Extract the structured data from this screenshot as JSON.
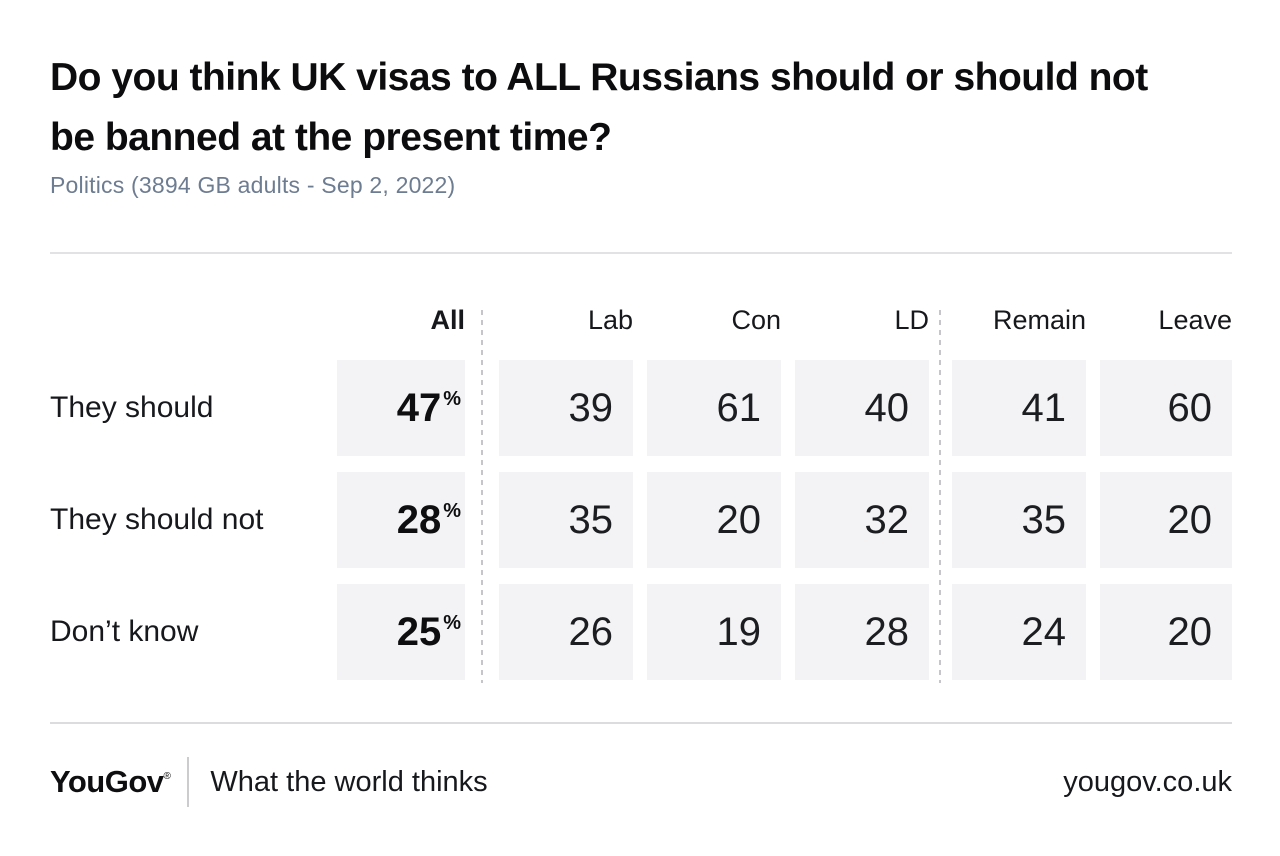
{
  "page": {
    "title": "Do you think UK visas to ALL Russians should or should not\nbe banned at the present time?",
    "subtitle": "Politics (3894 GB adults - Sep 2, 2022)"
  },
  "table": {
    "headers": {
      "all": "All",
      "lab": "Lab",
      "con": "Con",
      "ld": "LD",
      "remain": "Remain",
      "leave": "Leave"
    },
    "unit": "%",
    "rows": [
      {
        "label": "They should",
        "all": "47",
        "lab": "39",
        "con": "61",
        "ld": "40",
        "remain": "41",
        "leave": "60"
      },
      {
        "label": "They should not",
        "all": "28",
        "lab": "35",
        "con": "20",
        "ld": "32",
        "remain": "35",
        "leave": "20"
      },
      {
        "label": "Don’t know",
        "all": "25",
        "lab": "26",
        "con": "19",
        "ld": "28",
        "remain": "24",
        "leave": "20"
      }
    ]
  },
  "footer": {
    "logo": "YouGov",
    "registered_mark": "®",
    "tagline": "What the world thinks",
    "site": "yougov.co.uk"
  },
  "colors": {
    "cell_background": "#f3f3f5",
    "subtitle_text": "#6d7c91",
    "body_text": "#17181c",
    "divider": "#e2e2e4",
    "dashed_separator": "#c6c6ca"
  },
  "chart_data": {
    "type": "table",
    "title": "Do you think UK visas to ALL Russians should or should not be banned at the present time?",
    "subtitle": "Politics (3894 GB adults - Sep 2, 2022)",
    "unit": "%",
    "columns": [
      "All",
      "Lab",
      "Con",
      "LD",
      "Remain",
      "Leave"
    ],
    "rows": [
      "They should",
      "They should not",
      "Don’t know"
    ],
    "values": [
      [
        47,
        39,
        61,
        40,
        41,
        60
      ],
      [
        28,
        35,
        20,
        32,
        35,
        20
      ],
      [
        25,
        26,
        19,
        28,
        24,
        20
      ]
    ]
  }
}
